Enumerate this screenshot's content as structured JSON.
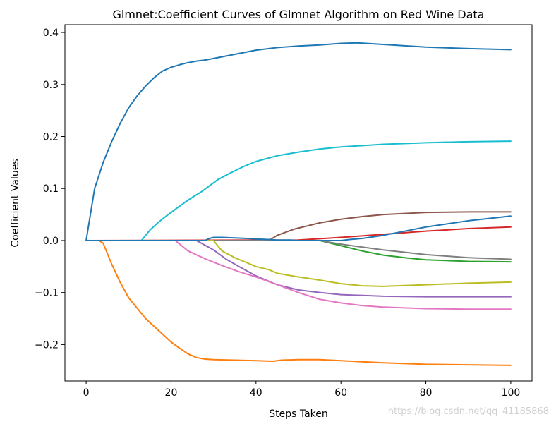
{
  "chart_data": {
    "type": "line",
    "title": "Glmnet:Coefficient Curves of Glmnet Algorithm on Red Wine Data",
    "xlabel": "Steps Taken",
    "ylabel": "Coefficient Values",
    "xlim": [
      -5,
      105
    ],
    "ylim": [
      -0.27,
      0.415
    ],
    "xticks": [
      0,
      20,
      40,
      60,
      80,
      100
    ],
    "yticks": [
      -0.2,
      -0.1,
      0.0,
      0.1,
      0.2,
      0.3,
      0.4
    ],
    "xtick_labels": [
      "0",
      "20",
      "40",
      "60",
      "80",
      "100"
    ],
    "ytick_labels": [
      "−0.2",
      "−0.1",
      "0.0",
      "0.1",
      "0.2",
      "0.3",
      "0.4"
    ],
    "grid": false,
    "series": [
      {
        "color": "#1f77b4",
        "x": [
          0,
          2,
          4,
          6,
          8,
          10,
          12,
          14,
          16,
          18,
          20,
          22,
          24,
          26,
          28,
          30,
          35,
          40,
          45,
          50,
          55,
          60,
          64,
          70,
          80,
          90,
          100
        ],
        "y": [
          0,
          0.1,
          0.15,
          0.19,
          0.225,
          0.255,
          0.278,
          0.297,
          0.313,
          0.326,
          0.333,
          0.338,
          0.342,
          0.345,
          0.347,
          0.35,
          0.358,
          0.366,
          0.371,
          0.374,
          0.376,
          0.379,
          0.38,
          0.377,
          0.372,
          0.369,
          0.367
        ]
      },
      {
        "color": "#ff7f0e",
        "x": [
          0,
          3,
          4,
          6,
          8,
          10,
          12,
          14,
          16,
          18,
          20,
          22,
          24,
          26,
          28,
          30,
          35,
          40,
          44,
          46,
          50,
          55,
          60,
          70,
          80,
          90,
          100
        ],
        "y": [
          0,
          0,
          -0.005,
          -0.045,
          -0.08,
          -0.11,
          -0.13,
          -0.15,
          -0.165,
          -0.18,
          -0.195,
          -0.207,
          -0.218,
          -0.225,
          -0.228,
          -0.229,
          -0.23,
          -0.231,
          -0.232,
          -0.23,
          -0.229,
          -0.229,
          -0.231,
          -0.235,
          -0.238,
          -0.239,
          -0.24
        ]
      },
      {
        "color": "#2ca02c",
        "x": [
          0,
          55,
          60,
          65,
          70,
          75,
          80,
          90,
          100
        ],
        "y": [
          0,
          0,
          -0.01,
          -0.02,
          -0.028,
          -0.033,
          -0.037,
          -0.04,
          -0.041
        ]
      },
      {
        "color": "#d62728",
        "x": [
          0,
          50,
          60,
          70,
          80,
          90,
          100
        ],
        "y": [
          0,
          0.001,
          0.006,
          0.012,
          0.018,
          0.023,
          0.026
        ]
      },
      {
        "color": "#9467bd",
        "x": [
          0,
          26,
          30,
          33,
          36,
          40,
          45,
          50,
          55,
          60,
          70,
          80,
          90,
          100
        ],
        "y": [
          0,
          0,
          -0.018,
          -0.036,
          -0.05,
          -0.068,
          -0.085,
          -0.095,
          -0.1,
          -0.104,
          -0.107,
          -0.108,
          -0.108,
          -0.108
        ]
      },
      {
        "color": "#8c564b",
        "x": [
          0,
          43,
          45,
          47,
          49,
          52,
          55,
          60,
          65,
          70,
          80,
          90,
          100
        ],
        "y": [
          0,
          0,
          0.01,
          0.016,
          0.022,
          0.028,
          0.034,
          0.041,
          0.046,
          0.05,
          0.054,
          0.055,
          0.055
        ]
      },
      {
        "color": "#e377c2",
        "x": [
          0,
          21,
          24,
          28,
          32,
          36,
          40,
          45,
          50,
          55,
          60,
          65,
          70,
          80,
          90,
          100
        ],
        "y": [
          0,
          0,
          -0.02,
          -0.035,
          -0.048,
          -0.06,
          -0.07,
          -0.085,
          -0.1,
          -0.113,
          -0.12,
          -0.125,
          -0.128,
          -0.131,
          -0.132,
          -0.132
        ]
      },
      {
        "color": "#7f7f7f",
        "x": [
          0,
          55,
          60,
          70,
          80,
          90,
          100
        ],
        "y": [
          0,
          0,
          -0.007,
          -0.018,
          -0.027,
          -0.033,
          -0.036
        ]
      },
      {
        "color": "#bcbd22",
        "x": [
          0,
          30,
          32,
          35,
          38,
          40,
          43,
          45,
          50,
          55,
          60,
          65,
          70,
          80,
          90,
          100
        ],
        "y": [
          0,
          0,
          -0.02,
          -0.033,
          -0.043,
          -0.05,
          -0.056,
          -0.063,
          -0.07,
          -0.076,
          -0.083,
          -0.087,
          -0.088,
          -0.085,
          -0.082,
          -0.08
        ]
      },
      {
        "color": "#17becf",
        "x": [
          0,
          13,
          15,
          17,
          19,
          21,
          23,
          25,
          27,
          29,
          31,
          34,
          37,
          40,
          45,
          50,
          55,
          60,
          70,
          80,
          90,
          100
        ],
        "y": [
          0,
          0,
          0.02,
          0.035,
          0.048,
          0.06,
          0.072,
          0.083,
          0.093,
          0.105,
          0.117,
          0.13,
          0.142,
          0.152,
          0.163,
          0.17,
          0.176,
          0.18,
          0.185,
          0.188,
          0.19,
          0.191
        ]
      },
      {
        "color": "#1f77b4",
        "x": [
          0,
          28,
          29,
          30,
          32,
          35,
          38,
          40,
          43,
          45,
          48,
          50,
          55,
          58,
          60,
          62,
          65,
          70,
          75,
          80,
          90,
          100
        ],
        "y": [
          0,
          0,
          0.004,
          0.006,
          0.006,
          0.005,
          0.004,
          0.003,
          0.002,
          0.001,
          0.001,
          0,
          0,
          0,
          0,
          0.002,
          0.004,
          0.01,
          0.018,
          0.026,
          0.038,
          0.047
        ]
      }
    ]
  },
  "watermark": "https://blog.csdn.net/qq_41185868"
}
